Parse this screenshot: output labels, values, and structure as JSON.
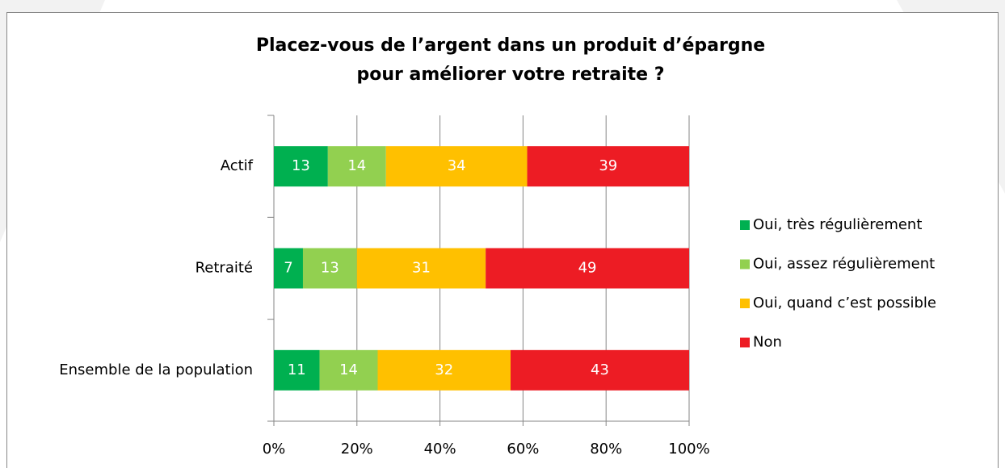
{
  "chart_data": {
    "type": "stacked-bar-horizontal",
    "title": [
      "Placez-vous de l’argent dans un produit d’épargne",
      "pour améliorer votre retraite ?"
    ],
    "categories": [
      "Actif",
      "Retraité",
      "Ensemble de la population"
    ],
    "series": [
      {
        "name": "Oui, très régulièrement",
        "color": "#00b050",
        "values": [
          13,
          7,
          11
        ]
      },
      {
        "name": "Oui, assez régulièrement",
        "color": "#92d050",
        "values": [
          14,
          13,
          14
        ]
      },
      {
        "name": "Oui, quand c’est possible",
        "color": "#ffc000",
        "values": [
          34,
          31,
          32
        ]
      },
      {
        "name": "Non",
        "color": "#ed1c24",
        "values": [
          39,
          49,
          43
        ]
      }
    ],
    "xlim": [
      0,
      100
    ],
    "xticks": [
      {
        "value": 0,
        "label": "0%"
      },
      {
        "value": 20,
        "label": "20%"
      },
      {
        "value": 40,
        "label": "40%"
      },
      {
        "value": 60,
        "label": "60%"
      },
      {
        "value": 80,
        "label": "80%"
      },
      {
        "value": 100,
        "label": "100%"
      }
    ],
    "grid": true,
    "legend": "right"
  }
}
